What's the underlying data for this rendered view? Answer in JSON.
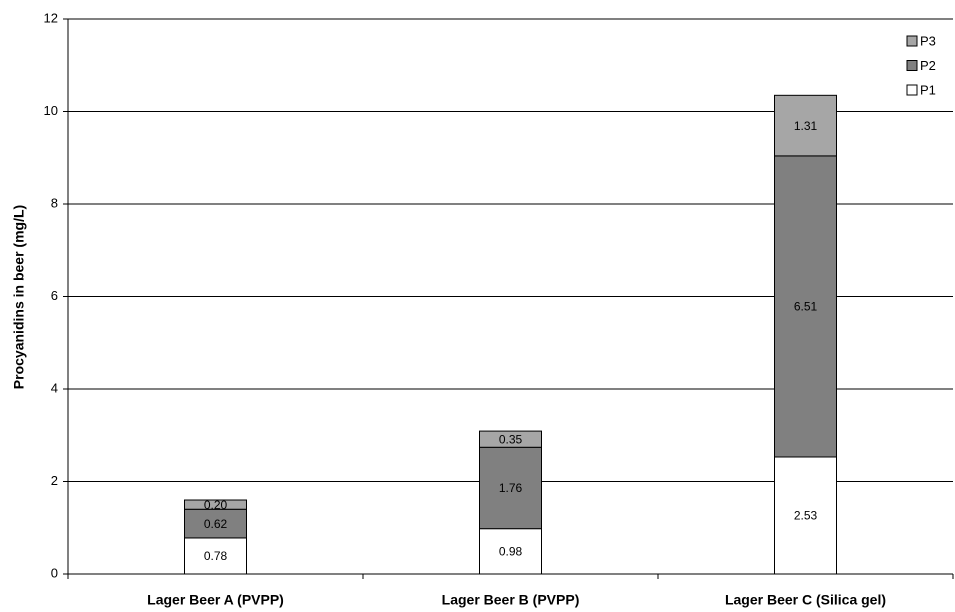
{
  "chart_data": {
    "type": "stacked_bar",
    "y_label": "Procyanidins in beer (mg/L)",
    "categories": [
      "Lager Beer A (PVPP)",
      "Lager Beer B (PVPP)",
      "Lager Beer C (Silica gel)"
    ],
    "series": [
      {
        "name": "P1",
        "color": "#ffffff",
        "values": [
          0.78,
          0.98,
          2.53
        ]
      },
      {
        "name": "P2",
        "color": "#808080",
        "values": [
          0.62,
          1.76,
          6.51
        ]
      },
      {
        "name": "P3",
        "color": "#a6a6a6",
        "values": [
          0.2,
          0.35,
          1.31
        ],
        "value_labels": [
          "0.20",
          "0.35",
          "1.31"
        ]
      }
    ],
    "ylim": [
      0,
      12
    ],
    "yticks": [
      0,
      2,
      4,
      6,
      8,
      10,
      12
    ],
    "grid": true,
    "legend": "top-right"
  }
}
